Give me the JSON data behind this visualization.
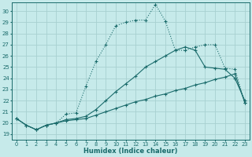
{
  "xlabel": "Humidex (Indice chaleur)",
  "bg_color": "#c6eaea",
  "grid_color": "#a8d0d0",
  "line_color": "#1a6b6b",
  "xlim": [
    -0.5,
    23.5
  ],
  "ylim": [
    18.5,
    30.8
  ],
  "yticks": [
    19,
    20,
    21,
    22,
    23,
    24,
    25,
    26,
    27,
    28,
    29,
    30
  ],
  "xticks": [
    0,
    1,
    2,
    3,
    4,
    5,
    6,
    7,
    8,
    9,
    10,
    11,
    12,
    13,
    14,
    15,
    16,
    17,
    18,
    19,
    20,
    21,
    22,
    23
  ],
  "line1_x": [
    0,
    1,
    2,
    3,
    4,
    5,
    6,
    7,
    8,
    9,
    10,
    11,
    12,
    13,
    14,
    15,
    16,
    17,
    18,
    19,
    20,
    21,
    22,
    23
  ],
  "line1_y": [
    20.4,
    19.8,
    19.4,
    19.8,
    20.0,
    20.8,
    20.9,
    23.3,
    25.5,
    27.0,
    28.7,
    29.0,
    29.2,
    29.2,
    30.6,
    29.1,
    26.5,
    26.5,
    26.8,
    27.0,
    27.0,
    24.9,
    24.8,
    21.8
  ],
  "line2_x": [
    0,
    1,
    2,
    3,
    4,
    5,
    6,
    7,
    8,
    9,
    10,
    11,
    12,
    13,
    14,
    15,
    16,
    17,
    18,
    19,
    20,
    21,
    22,
    23
  ],
  "line2_y": [
    20.4,
    19.8,
    19.4,
    19.8,
    20.0,
    20.3,
    20.4,
    20.6,
    21.2,
    22.0,
    22.8,
    23.5,
    24.2,
    25.0,
    25.5,
    26.0,
    26.5,
    26.8,
    26.5,
    25.0,
    24.9,
    24.8,
    24.0,
    22.0
  ],
  "line3_x": [
    0,
    1,
    2,
    3,
    4,
    5,
    6,
    7,
    8,
    9,
    10,
    11,
    12,
    13,
    14,
    15,
    16,
    17,
    18,
    19,
    20,
    21,
    22,
    23
  ],
  "line3_y": [
    20.4,
    19.8,
    19.4,
    19.8,
    20.0,
    20.2,
    20.3,
    20.4,
    20.7,
    21.0,
    21.3,
    21.6,
    21.9,
    22.1,
    22.4,
    22.6,
    22.9,
    23.1,
    23.4,
    23.6,
    23.9,
    24.1,
    24.4,
    21.8
  ]
}
